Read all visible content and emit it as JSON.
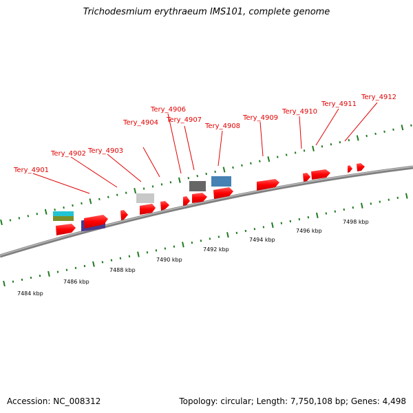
{
  "title": "Trichodesmium erythraeum IMS101, complete genome",
  "footer": {
    "accession": "Accession: NC_008312",
    "info": "Topology: circular; Length: 7,750,108 bp; Genes: 4,498"
  },
  "gene_labels": [
    "Tery_4901",
    "Tery_4902",
    "Tery_4903",
    "Tery_4904",
    "Tery_4906",
    "Tery_4907",
    "Tery_4908",
    "Tery_4909",
    "Tery_4910",
    "Tery_4911",
    "Tery_4912"
  ],
  "scale_labels": [
    "7484 kbp",
    "7486 kbp",
    "7488 kbp",
    "7490 kbp",
    "7492 kbp",
    "7494 kbp",
    "7496 kbp",
    "7498 kbp"
  ],
  "colors": {
    "gene_arrow": "#ff0000",
    "label_text": "#e00000",
    "tick": "#1f7a1f",
    "backbone": "#8a8a8a",
    "cog_cyan": "#22c4d4",
    "cog_olive": "#7a8f2a",
    "cog_purple": "#4a3a8c",
    "cog_lightgray": "#c8c8c8",
    "cog_darkgray": "#666666",
    "cog_steelblue": "#4682b4"
  }
}
